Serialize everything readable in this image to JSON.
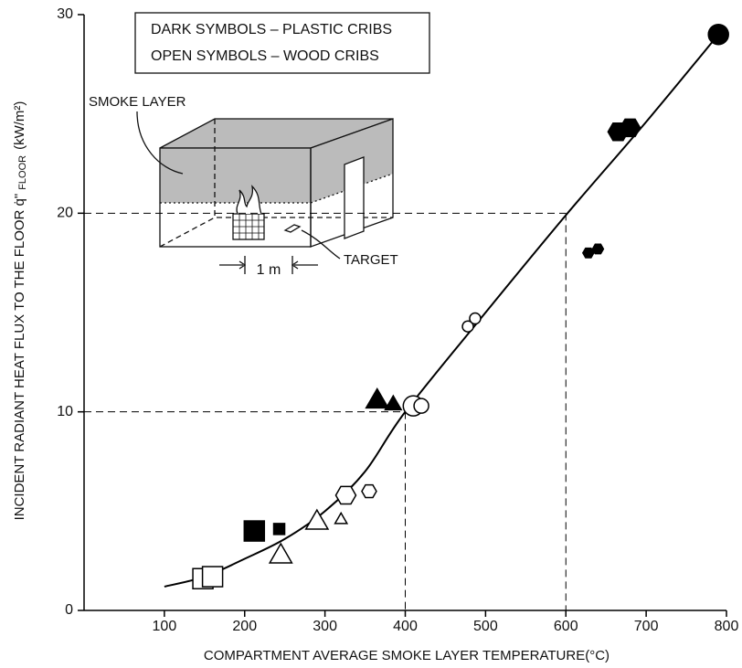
{
  "chart_data": {
    "type": "scatter",
    "xlabel": "COMPARTMENT AVERAGE SMOKE LAYER TEMPERATURE(°C)",
    "ylabel": "INCIDENT RADIANT HEAT FLUX TO THE FLOOR q̇\"",
    "ylabel_sub": "FLOOR",
    "ylabel_unit": "(kW/m²)",
    "xlim": [
      0,
      800
    ],
    "xticks": [
      100,
      200,
      300,
      400,
      500,
      600,
      700,
      800
    ],
    "ylim": [
      0,
      30
    ],
    "yticks": [
      0,
      10,
      20,
      30
    ],
    "notes": [
      "DARK SYMBOLS – PLASTIC CRIBS",
      "OPEN SYMBOLS – WOOD CRIBS"
    ],
    "inset_labels": {
      "smoke": "SMOKE LAYER",
      "scale": "1 m",
      "target": "TARGET"
    },
    "color": "#000000",
    "points": [
      {
        "x": 212,
        "y": 4.0,
        "marker": "square",
        "filled": true,
        "size": "large"
      },
      {
        "x": 243,
        "y": 4.1,
        "marker": "square",
        "filled": true,
        "size": "small"
      },
      {
        "x": 365,
        "y": 10.6,
        "marker": "triangle",
        "filled": true,
        "size": "large"
      },
      {
        "x": 385,
        "y": 10.4,
        "marker": "triangle",
        "filled": true,
        "size": "medium"
      },
      {
        "x": 790,
        "y": 29.0,
        "marker": "circle",
        "filled": true,
        "size": "large"
      },
      {
        "x": 665,
        "y": 24.1,
        "marker": "hexagon",
        "filled": true,
        "size": "large"
      },
      {
        "x": 680,
        "y": 24.3,
        "marker": "hexagon",
        "filled": true,
        "size": "large"
      },
      {
        "x": 628,
        "y": 18.0,
        "marker": "hexagon",
        "filled": true,
        "size": "small"
      },
      {
        "x": 640,
        "y": 18.2,
        "marker": "hexagon",
        "filled": true,
        "size": "small"
      },
      {
        "x": 148,
        "y": 1.6,
        "marker": "square",
        "filled": false,
        "size": "large"
      },
      {
        "x": 160,
        "y": 1.7,
        "marker": "square",
        "filled": false,
        "size": "large"
      },
      {
        "x": 245,
        "y": 2.8,
        "marker": "triangle",
        "filled": false,
        "size": "large"
      },
      {
        "x": 290,
        "y": 4.5,
        "marker": "triangle",
        "filled": false,
        "size": "large"
      },
      {
        "x": 320,
        "y": 4.6,
        "marker": "triangle",
        "filled": false,
        "size": "small"
      },
      {
        "x": 326,
        "y": 5.8,
        "marker": "hexagon",
        "filled": false,
        "size": "large"
      },
      {
        "x": 355,
        "y": 6.0,
        "marker": "hexagon",
        "filled": false,
        "size": "medium"
      },
      {
        "x": 410,
        "y": 10.3,
        "marker": "circle",
        "filled": false,
        "size": "large"
      },
      {
        "x": 420,
        "y": 10.3,
        "marker": "circle",
        "filled": false,
        "size": "medium"
      },
      {
        "x": 478,
        "y": 14.3,
        "marker": "circle",
        "filled": false,
        "size": "small"
      },
      {
        "x": 487,
        "y": 14.7,
        "marker": "circle",
        "filled": false,
        "size": "small"
      }
    ],
    "curve": {
      "x": [
        100,
        150,
        200,
        250,
        300,
        350,
        400,
        500,
        600,
        700,
        790
      ],
      "y": [
        1.2,
        1.7,
        2.6,
        3.6,
        5.0,
        7.0,
        10.0,
        15.0,
        19.9,
        24.6,
        29.0
      ]
    },
    "guides": [
      {
        "x": 400,
        "y": 10
      },
      {
        "x": 600,
        "y": 20
      }
    ]
  }
}
